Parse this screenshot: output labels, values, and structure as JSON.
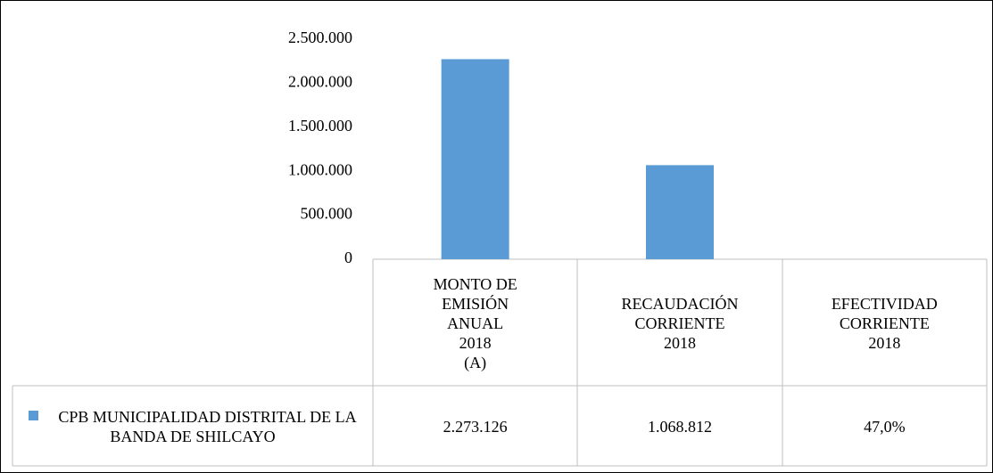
{
  "chart_data": {
    "type": "bar",
    "categories": [
      "MONTO DE\nEMISIÓN\nANUAL\n2018\n(A)",
      "RECAUDACIÓN\nCORRIENTE\n2018",
      "EFECTIVIDAD\nCORRIENTE\n2018"
    ],
    "series": [
      {
        "name": "CPB MUNICIPALIDAD DISTRITAL DE LA BANDA DE SHILCAYO",
        "color": "#5b9bd5",
        "values": [
          2273126,
          1068812,
          47
        ],
        "value_labels": [
          "2.273.126",
          "1.068.812",
          "47,0%"
        ]
      }
    ],
    "ylim": [
      0,
      2500000
    ],
    "yticks": [
      0,
      {
        "value": 500000,
        "label": "500.000"
      },
      {
        "value": 1000000,
        "label": "1.000.000"
      },
      {
        "value": 1500000,
        "label": "1.500.000"
      },
      {
        "value": 2000000,
        "label": "2.000.000"
      },
      {
        "value": 2500000,
        "label": "2.500.000"
      }
    ],
    "grid": false
  }
}
